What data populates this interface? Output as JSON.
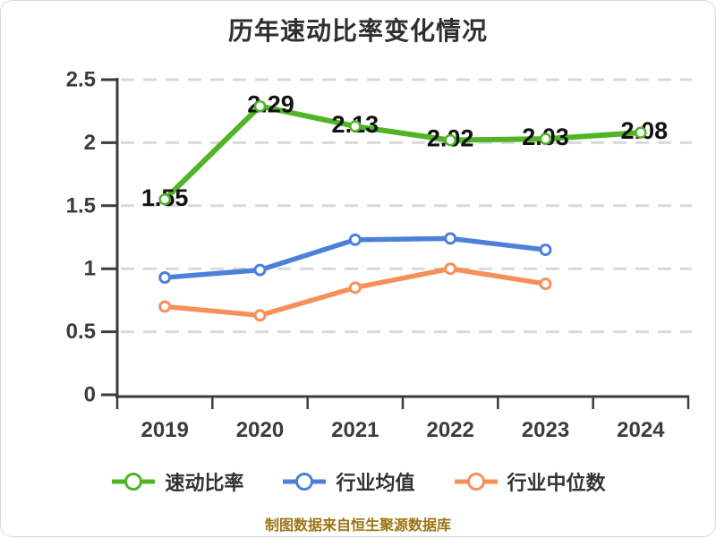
{
  "title": "历年速动比率变化情况",
  "footer": "制图数据来自恒生聚源数据库",
  "colors": {
    "title_text": "#2f2f2f",
    "axis": "#3c3c3c",
    "gridline": "#d9d9d9",
    "data_label_text": "#121212",
    "legend_text": "#333333",
    "footer_text": "#9c7514",
    "marker_fill": "#ffffff"
  },
  "chart_data": {
    "type": "line",
    "title": "历年速动比率变化情况",
    "categories": [
      "2019",
      "2020",
      "2021",
      "2022",
      "2023",
      "2024"
    ],
    "series": [
      {
        "name": "速动比率",
        "color": "#4fb428",
        "values": [
          1.55,
          2.29,
          2.13,
          2.02,
          2.03,
          2.08
        ],
        "data_labels": [
          "1.55",
          "2.29",
          "2.13",
          "2.02",
          "2.03",
          "2.08"
        ]
      },
      {
        "name": "行业均值",
        "color": "#4c80da",
        "values": [
          0.93,
          0.99,
          1.23,
          1.24,
          1.15
        ]
      },
      {
        "name": "行业中位数",
        "color": "#f5905a",
        "values": [
          0.7,
          0.63,
          0.85,
          1.0,
          0.88
        ]
      }
    ],
    "xlabel": "",
    "ylabel": "",
    "ylim": [
      0,
      2.5
    ],
    "yticks": [
      "0",
      "0.5",
      "1",
      "1.5",
      "2",
      "2.5"
    ],
    "grid": "horizontal-dashed",
    "legend_position": "bottom",
    "footer": "制图数据来自恒生聚源数据库"
  }
}
